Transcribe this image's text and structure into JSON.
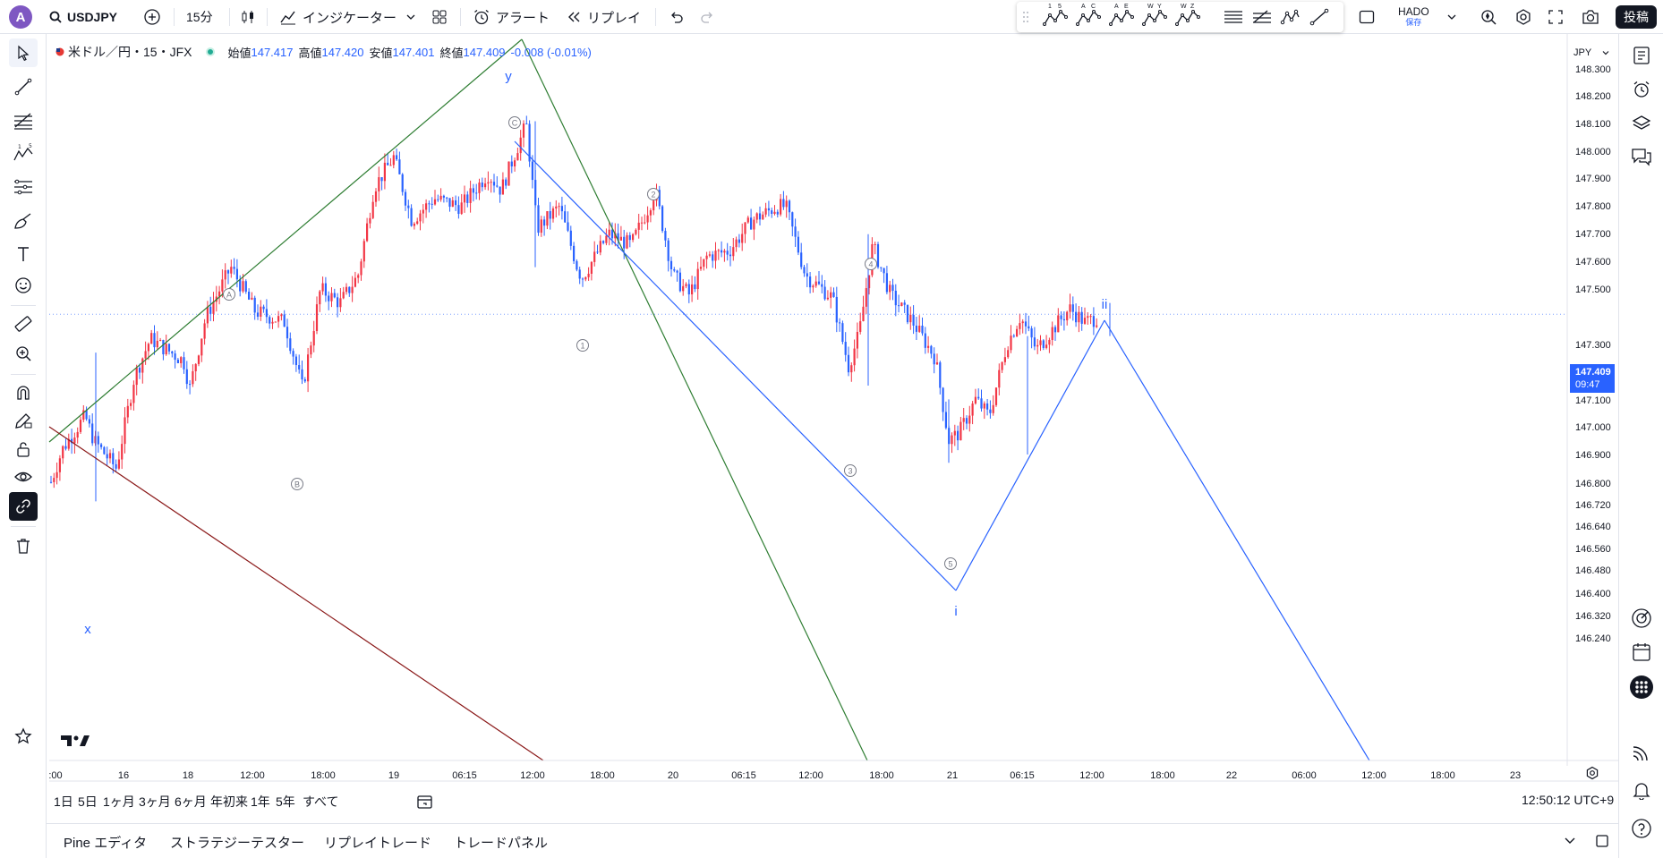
{
  "top_toolbar": {
    "avatar_letter": "A",
    "symbol": "USDJPY",
    "interval": "15分",
    "indicators_label": "インジケーター",
    "alert_label": "アラート",
    "replay_label": "リプレイ",
    "layout_name": "HADO",
    "layout_status": "保存",
    "post_label": "投稿",
    "wave_tools": [
      "1 5",
      "A C",
      "A E",
      "W Y",
      "W Z"
    ]
  },
  "legend": {
    "title": "米ドル／円・15・JFX",
    "open_label": "始値",
    "open_value": "147.417",
    "high_label": "高値",
    "high_value": "147.420",
    "low_label": "安値",
    "low_value": "147.401",
    "close_label": "終値",
    "close_value": "147.409",
    "change": "-0.008 (-0.01%)"
  },
  "colors": {
    "up": "#f23645",
    "down": "#2962ff",
    "wave_blue": "#2962ff",
    "green_line": "#2e7d32",
    "red_line": "#8b1a1a",
    "accent": "#131722"
  },
  "chart": {
    "currency": "JPY",
    "current_price": "147.409",
    "countdown": "09:47",
    "price_ticks": [
      "148.300",
      "148.200",
      "148.100",
      "148.000",
      "147.900",
      "147.800",
      "147.700",
      "147.600",
      "147.500",
      "147.300",
      "147.200",
      "147.100",
      "147.000",
      "146.900",
      "146.800",
      "146.720",
      "146.640",
      "146.560",
      "146.480",
      "146.400",
      "146.320",
      "146.240"
    ],
    "time_ticks": [
      ":00",
      "16",
      "18",
      "12:00",
      "18:00",
      "19",
      "06:15",
      "12:00",
      "18:00",
      "20",
      "06:15",
      "12:00",
      "18:00",
      "21",
      "06:15",
      "12:00",
      "18:00",
      "22",
      "06:00",
      "12:00",
      "18:00",
      "23"
    ],
    "wave_labels": {
      "x": "x",
      "y": "y",
      "i": "i",
      "ii": "ii",
      "A": "A",
      "B": "B",
      "C": "C",
      "w1": "1",
      "w2": "2",
      "w3": "3",
      "w4": "4",
      "w5": "5"
    }
  },
  "chart_data": {
    "type": "candlestick",
    "symbol": "USDJPY",
    "ylim": [
      146.2,
      148.35
    ],
    "last_price": 147.409,
    "key_points": [
      {
        "label": "A",
        "price": 147.62
      },
      {
        "label": "B",
        "price": 147.13
      },
      {
        "label": "C",
        "price": 148.11
      },
      {
        "label": "1",
        "price": 147.54
      },
      {
        "label": "2",
        "price": 147.91
      },
      {
        "label": "3",
        "price": 147.12
      },
      {
        "label": "4",
        "price": 147.7
      },
      {
        "label": "5",
        "price": 146.73
      },
      {
        "label": "ii",
        "price": 147.55
      }
    ]
  },
  "range_bar": {
    "ranges": [
      "1日",
      "5日",
      "1ヶ月",
      "3ヶ月",
      "6ヶ月",
      "年初来",
      "1年",
      "5年",
      "すべて"
    ],
    "clock": "12:50:12 UTC+9"
  },
  "bottom_tabs": [
    "Pine エディタ",
    "ストラテジーテスター",
    "リプレイトレード",
    "トレードパネル"
  ]
}
